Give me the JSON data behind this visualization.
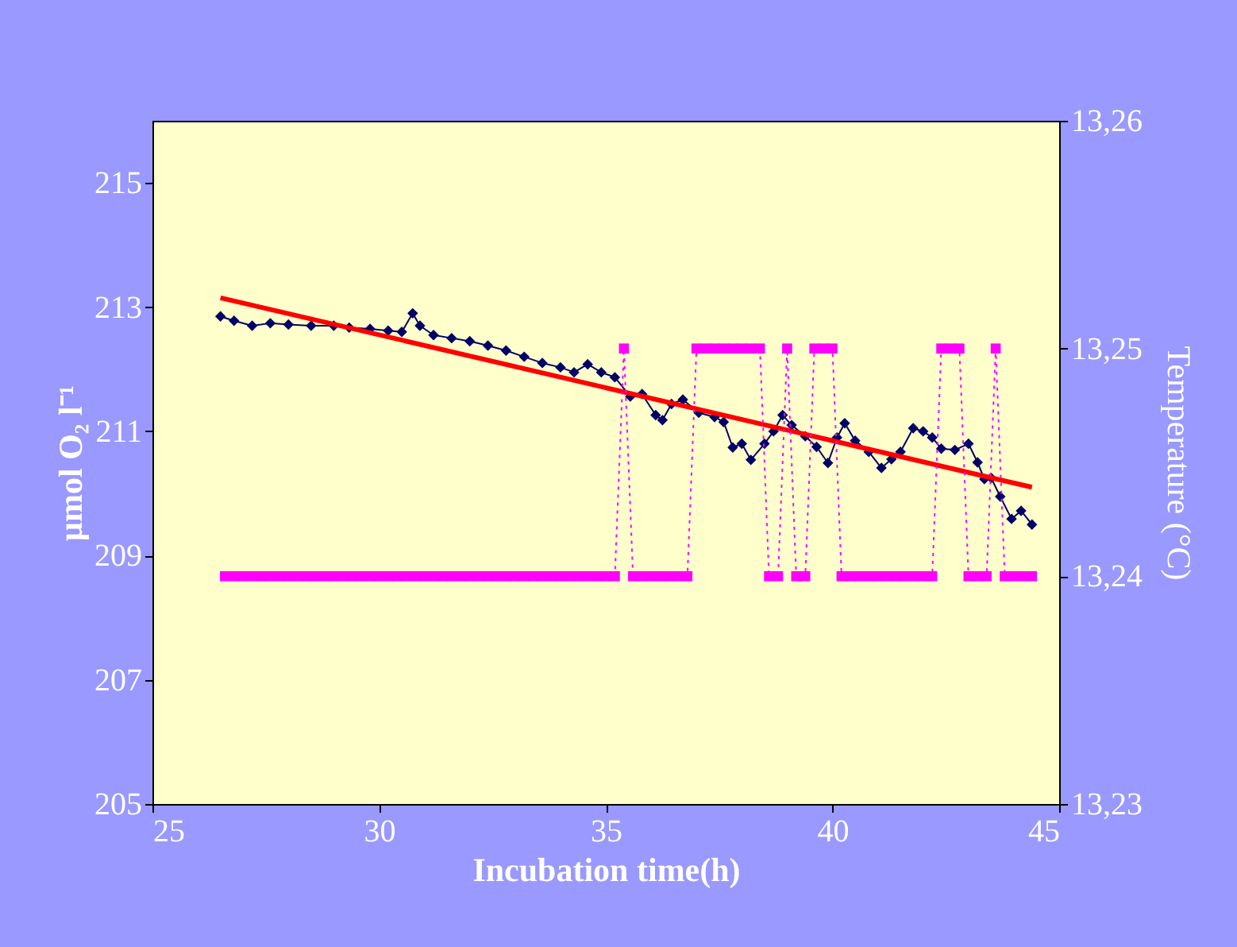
{
  "chart_data": {
    "type": "line",
    "xlabel": "Incubation time(h)",
    "ylabel": "µmol O₂ l⁻¹",
    "y2label": "Temperature (°C)",
    "xlim": [
      25,
      45
    ],
    "xticks": [
      25,
      30,
      35,
      40,
      45
    ],
    "ylim": [
      205,
      216
    ],
    "yticks": [
      205,
      207,
      209,
      211,
      213,
      215
    ],
    "y2lim": [
      13.23,
      13.26
    ],
    "y2ticks": [
      {
        "value": 13.23,
        "label": "13,23"
      },
      {
        "value": 13.24,
        "label": "13,24"
      },
      {
        "value": 13.25,
        "label": "13,25"
      },
      {
        "value": 13.26,
        "label": "13,26"
      }
    ],
    "series": [
      {
        "color": "#000066",
        "marker": "diamond",
        "line_style": "solid",
        "x": [
          26.5,
          26.8,
          27.2,
          27.6,
          28.0,
          28.5,
          29.0,
          29.34,
          29.8,
          30.2,
          30.5,
          30.74,
          30.9,
          31.2,
          31.6,
          32.0,
          32.4,
          32.8,
          33.2,
          33.6,
          34.0,
          34.3,
          34.6,
          34.9,
          35.2,
          35.54,
          35.8,
          36.1,
          36.25,
          36.45,
          36.7,
          37.05,
          37.4,
          37.6,
          37.8,
          38.0,
          38.2,
          38.5,
          38.7,
          38.9,
          39.1,
          39.4,
          39.65,
          39.9,
          40.1,
          40.27,
          40.5,
          40.8,
          41.08,
          41.3,
          41.5,
          41.78,
          42.0,
          42.2,
          42.4,
          42.7,
          43.0,
          43.2,
          43.35,
          43.5,
          43.7,
          43.95,
          44.16,
          44.4
        ],
        "values": [
          212.85,
          212.78,
          212.7,
          212.74,
          212.72,
          212.7,
          212.7,
          212.67,
          212.65,
          212.62,
          212.6,
          212.9,
          212.7,
          212.55,
          212.5,
          212.45,
          212.38,
          212.3,
          212.2,
          212.1,
          212.03,
          211.95,
          212.08,
          211.95,
          211.87,
          211.56,
          211.6,
          211.26,
          211.18,
          211.44,
          211.51,
          211.3,
          211.23,
          211.15,
          210.74,
          210.8,
          210.54,
          210.8,
          211.0,
          211.26,
          211.1,
          210.92,
          210.75,
          210.49,
          210.9,
          211.13,
          210.85,
          210.67,
          210.41,
          210.55,
          210.67,
          211.05,
          211.0,
          210.9,
          210.72,
          210.7,
          210.8,
          210.5,
          210.23,
          210.25,
          209.95,
          209.59,
          209.72,
          209.5
        ]
      },
      {
        "color": "#FF0000",
        "marker": "none",
        "line_style": "solid",
        "x": [
          26.5,
          44.4
        ],
        "values": [
          213.15,
          210.1
        ]
      },
      {
        "axis": "y2",
        "color": "#FF00FF",
        "marker": "square",
        "line_style": "dotted",
        "x": [
          26.6,
          26.8,
          27.0,
          27.2,
          27.4,
          27.6,
          27.8,
          28.0,
          28.2,
          28.4,
          28.6,
          28.8,
          29.0,
          29.2,
          29.4,
          29.6,
          29.8,
          30.0,
          30.2,
          30.4,
          30.6,
          30.8,
          31.0,
          31.2,
          31.4,
          31.6,
          31.8,
          32.0,
          32.2,
          32.4,
          32.6,
          32.8,
          33.0,
          33.2,
          33.4,
          33.6,
          33.8,
          34.0,
          34.2,
          34.4,
          34.6,
          34.8,
          35.0,
          35.2,
          35.4,
          35.6,
          35.8,
          36.0,
          36.2,
          36.4,
          36.6,
          36.8,
          37.0,
          37.2,
          37.4,
          37.6,
          37.8,
          38.0,
          38.2,
          38.4,
          38.6,
          38.8,
          39.0,
          39.2,
          39.4,
          39.6,
          39.8,
          40.0,
          40.2,
          40.4,
          40.6,
          40.8,
          41.0,
          41.2,
          41.4,
          41.6,
          41.8,
          42.0,
          42.2,
          42.4,
          42.6,
          42.8,
          43.0,
          43.2,
          43.4,
          43.6,
          43.8,
          44.0,
          44.2,
          44.4
        ],
        "values": [
          13.24,
          13.24,
          13.24,
          13.24,
          13.24,
          13.24,
          13.24,
          13.24,
          13.24,
          13.24,
          13.24,
          13.24,
          13.24,
          13.24,
          13.24,
          13.24,
          13.24,
          13.24,
          13.24,
          13.24,
          13.24,
          13.24,
          13.24,
          13.24,
          13.24,
          13.24,
          13.24,
          13.24,
          13.24,
          13.24,
          13.24,
          13.24,
          13.24,
          13.24,
          13.24,
          13.24,
          13.24,
          13.24,
          13.24,
          13.24,
          13.24,
          13.24,
          13.24,
          13.24,
          13.25,
          13.24,
          13.24,
          13.24,
          13.24,
          13.24,
          13.24,
          13.24,
          13.25,
          13.25,
          13.25,
          13.25,
          13.25,
          13.25,
          13.25,
          13.25,
          13.24,
          13.24,
          13.25,
          13.24,
          13.24,
          13.25,
          13.25,
          13.25,
          13.24,
          13.24,
          13.24,
          13.24,
          13.24,
          13.24,
          13.24,
          13.24,
          13.24,
          13.24,
          13.24,
          13.25,
          13.25,
          13.25,
          13.24,
          13.24,
          13.24,
          13.25,
          13.24,
          13.24,
          13.24,
          13.24
        ]
      }
    ]
  }
}
